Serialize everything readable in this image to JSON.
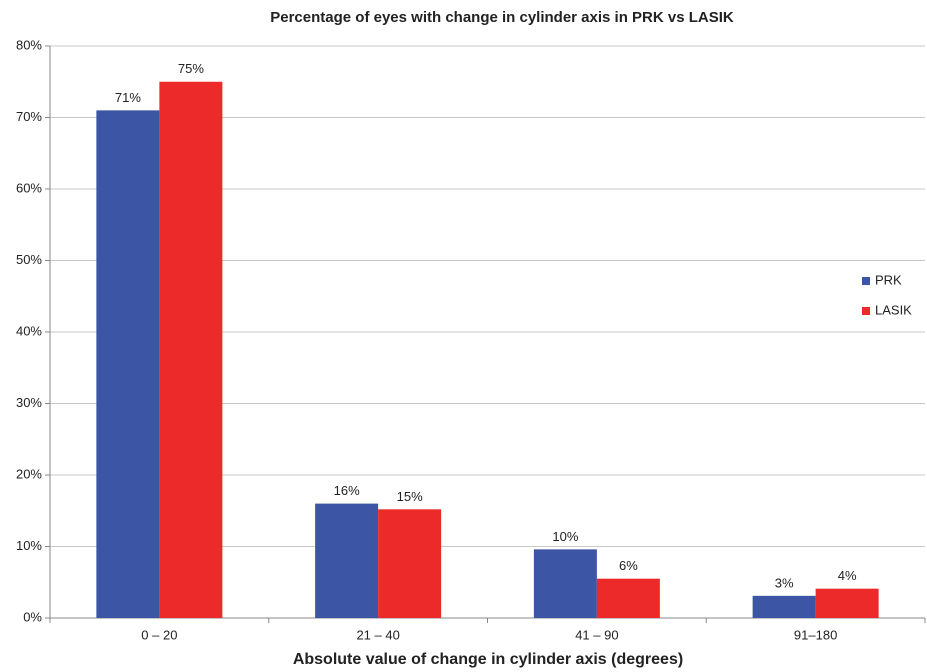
{
  "chart_data": {
    "type": "bar",
    "title": "Percentage of eyes with change in cylinder axis in PRK vs LASIK",
    "x_label": "Absolute value of change in cylinder axis (degrees)",
    "categories": [
      "0 – 20",
      "21 – 40",
      "41 – 90",
      "91–180"
    ],
    "series": [
      {
        "name": "PRK",
        "color": "#3c56a5",
        "values": [
          71,
          16,
          9.6,
          3.1
        ],
        "value_labels": [
          "71%",
          "16%",
          "10%",
          "3%"
        ]
      },
      {
        "name": "LASIK",
        "color": "#ec2a2a",
        "values": [
          75,
          15.2,
          5.5,
          4.1
        ],
        "value_labels": [
          "75%",
          "15%",
          "6%",
          "4%"
        ]
      }
    ],
    "ylim": [
      0,
      80
    ],
    "yticks": [
      {
        "value": 0,
        "label": "0%"
      },
      {
        "value": 10,
        "label": "10%"
      },
      {
        "value": 20,
        "label": "20%"
      },
      {
        "value": 30,
        "label": "30%"
      },
      {
        "value": 40,
        "label": "40%"
      },
      {
        "value": 50,
        "label": "50%"
      },
      {
        "value": 60,
        "label": "60%"
      },
      {
        "value": 70,
        "label": "70%"
      },
      {
        "value": 80,
        "label": "80%"
      }
    ],
    "grid": true,
    "legend": "right"
  }
}
